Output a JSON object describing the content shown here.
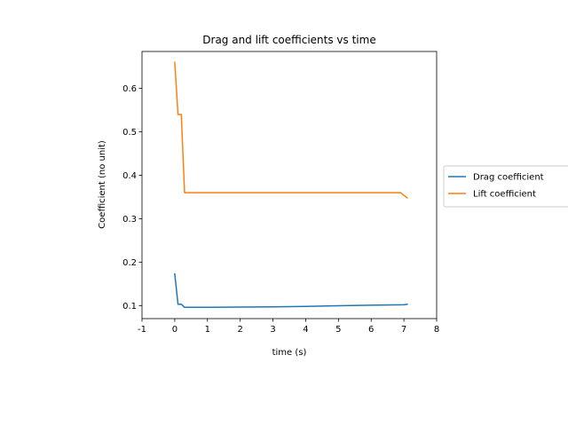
{
  "chart_data": {
    "type": "line",
    "title": "Drag and lift coefficients vs time",
    "xlabel": "time (s)",
    "ylabel": "Coefficient (no unit)",
    "xlim": [
      -1,
      8
    ],
    "ylim": [
      0.07,
      0.685
    ],
    "xticks": [
      -1,
      0,
      1,
      2,
      3,
      4,
      5,
      6,
      7,
      8
    ],
    "xtick_labels": [
      "-1",
      "0",
      "1",
      "2",
      "3",
      "4",
      "5",
      "6",
      "7",
      "8"
    ],
    "yticks": [
      0.1,
      0.2,
      0.3,
      0.4,
      0.5,
      0.6
    ],
    "ytick_labels": [
      "0.1",
      "0.2",
      "0.3",
      "0.4",
      "0.5",
      "0.6"
    ],
    "grid": false,
    "legend_position": "center-left outside right",
    "series": [
      {
        "name": "Drag coefficient",
        "color": "#1f77b4",
        "x": [
          0.0,
          0.1,
          0.2,
          0.3,
          1.0,
          2.0,
          3.0,
          4.0,
          5.0,
          6.0,
          7.0,
          7.1
        ],
        "y": [
          0.173,
          0.103,
          0.103,
          0.096,
          0.096,
          0.0965,
          0.097,
          0.098,
          0.0995,
          0.101,
          0.102,
          0.103
        ]
      },
      {
        "name": "Lift coefficient",
        "color": "#ff7f0e",
        "x": [
          0.0,
          0.1,
          0.2,
          0.3,
          1.0,
          2.0,
          3.0,
          4.0,
          5.0,
          6.0,
          6.9,
          7.1
        ],
        "y": [
          0.66,
          0.54,
          0.54,
          0.36,
          0.36,
          0.36,
          0.36,
          0.36,
          0.36,
          0.36,
          0.36,
          0.348
        ]
      }
    ]
  }
}
